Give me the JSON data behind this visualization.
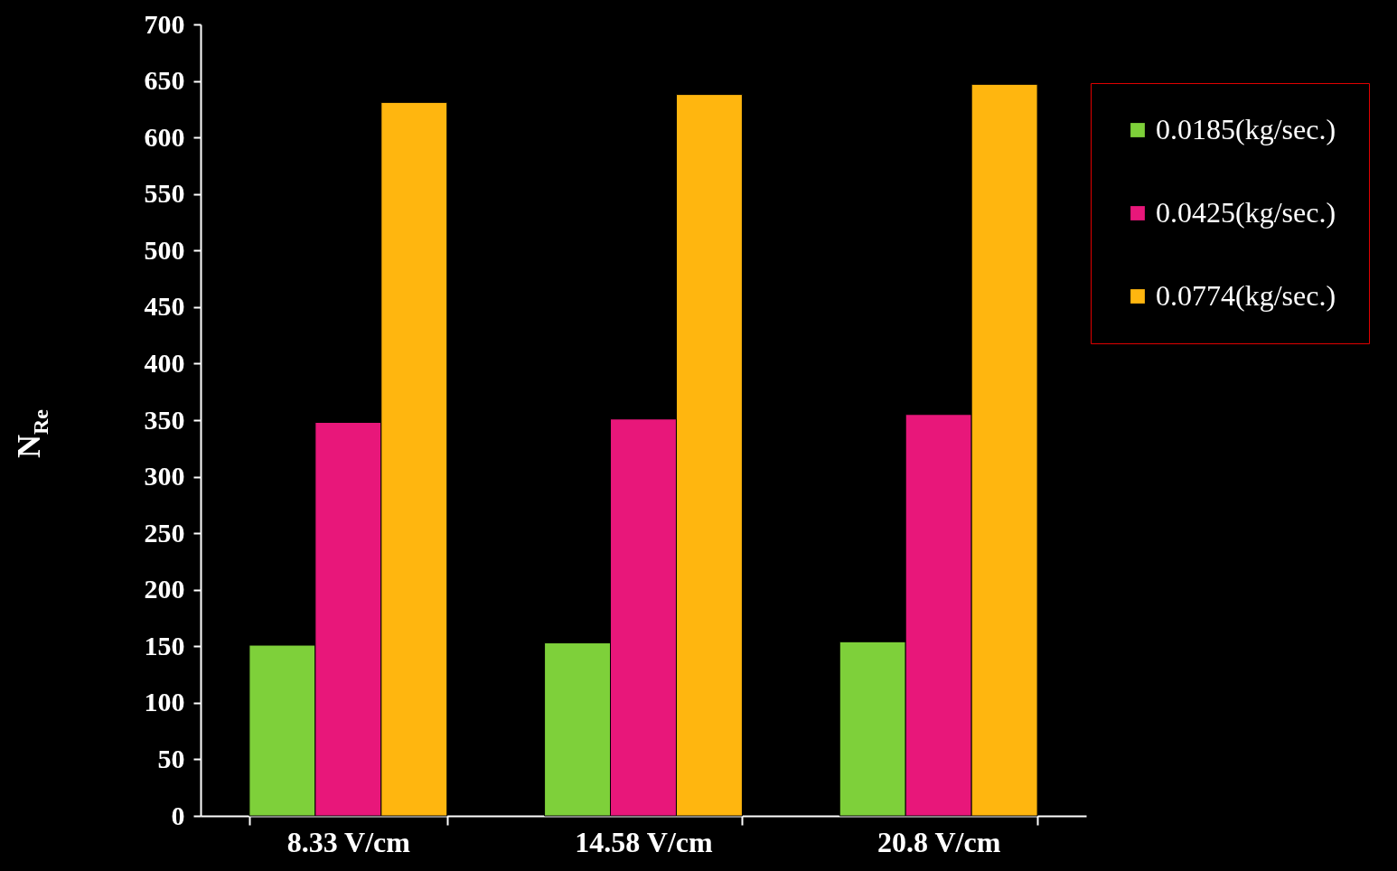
{
  "chart_data": {
    "type": "bar",
    "ylabel": "N$_{Re}$",
    "categories": [
      "8.33 V/cm",
      "14.58 V/cm",
      "20.8 V/cm"
    ],
    "series": [
      {
        "name": "0.0185(kg/sec.)",
        "color": "#7ed03a",
        "values": [
          151,
          153,
          154
        ]
      },
      {
        "name": "0.0425(kg/sec.)",
        "color": "#e8177a",
        "values": [
          348,
          351,
          355
        ]
      },
      {
        "name": "0.0774(kg/sec.)",
        "color": "#ffb60f",
        "values": [
          631,
          638,
          647
        ]
      }
    ],
    "ylim": [
      0,
      700
    ],
    "yticks": [
      0,
      50,
      100,
      150,
      200,
      250,
      300,
      350,
      400,
      450,
      500,
      550,
      600,
      650,
      700
    ],
    "legend": "right"
  }
}
